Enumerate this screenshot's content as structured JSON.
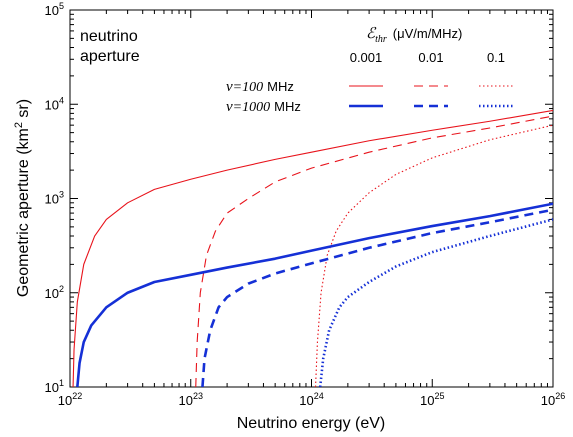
{
  "chart_data": {
    "type": "line",
    "xlabel": "Neutrino energy (eV)",
    "ylabel": "Geometric aperture (km² sr)",
    "x_scale": "log",
    "y_scale": "log",
    "xlim": [
      1e+22,
      1e+26
    ],
    "ylim": [
      10,
      100000
    ],
    "x_ticks": [
      {
        "base": "10",
        "exp": "22"
      },
      {
        "base": "10",
        "exp": "23"
      },
      {
        "base": "10",
        "exp": "24"
      },
      {
        "base": "10",
        "exp": "25"
      },
      {
        "base": "10",
        "exp": "26"
      }
    ],
    "y_ticks": [
      {
        "base": "10",
        "exp": "1"
      },
      {
        "base": "10",
        "exp": "2"
      },
      {
        "base": "10",
        "exp": "3"
      },
      {
        "base": "10",
        "exp": "4"
      },
      {
        "base": "10",
        "exp": "5"
      }
    ],
    "grid": false,
    "annotation": [
      "neutrino",
      "aperture"
    ],
    "legend": {
      "placement": "top-right",
      "threshold_title_symbol": "ℰ",
      "threshold_title_sub": "thr",
      "threshold_title_unit": "(μV/m/MHz)",
      "threshold_values": [
        "0.001",
        "0.01",
        "0.1"
      ],
      "frequency_labels": [
        {
          "symbol": "ν",
          "eq": "=100",
          "unit": "MHz"
        },
        {
          "symbol": "ν",
          "eq": "=1000",
          "unit": "MHz"
        }
      ]
    },
    "colors": {
      "100 MHz": "#e8131b",
      "1000 MHz": "#1530d6"
    },
    "series": [
      {
        "frequency": "100 MHz",
        "threshold": "0.001",
        "style": "solid",
        "points": [
          [
            1.06e+22,
            10
          ],
          [
            1.08e+22,
            25
          ],
          [
            1.15e+22,
            80
          ],
          [
            1.3e+22,
            200
          ],
          [
            1.6e+22,
            400
          ],
          [
            2e+22,
            600
          ],
          [
            3e+22,
            900
          ],
          [
            5e+22,
            1250
          ],
          [
            1e+23,
            1600
          ],
          [
            2e+23,
            2000
          ],
          [
            5e+23,
            2600
          ],
          [
            1e+24,
            3100
          ],
          [
            3e+24,
            4100
          ],
          [
            1e+25,
            5300
          ],
          [
            3e+25,
            6600
          ],
          [
            1e+26,
            8600
          ]
        ]
      },
      {
        "frequency": "100 MHz",
        "threshold": "0.01",
        "style": "dashed",
        "points": [
          [
            1.1e+23,
            10
          ],
          [
            1.13e+23,
            30
          ],
          [
            1.2e+23,
            100
          ],
          [
            1.35e+23,
            250
          ],
          [
            1.6e+23,
            450
          ],
          [
            2e+23,
            700
          ],
          [
            3e+23,
            1000
          ],
          [
            5e+23,
            1500
          ],
          [
            1e+24,
            2100
          ],
          [
            3e+24,
            3100
          ],
          [
            1e+25,
            4400
          ],
          [
            3e+25,
            5600
          ],
          [
            1e+26,
            7500
          ]
        ]
      },
      {
        "frequency": "100 MHz",
        "threshold": "0.1",
        "style": "dotted",
        "points": [
          [
            1.08e+24,
            10
          ],
          [
            1.12e+24,
            30
          ],
          [
            1.2e+24,
            100
          ],
          [
            1.35e+24,
            250
          ],
          [
            1.6e+24,
            450
          ],
          [
            2e+24,
            700
          ],
          [
            3e+24,
            1150
          ],
          [
            5e+24,
            1800
          ],
          [
            1e+25,
            2700
          ],
          [
            3e+25,
            4200
          ],
          [
            1e+26,
            6000
          ]
        ]
      },
      {
        "frequency": "1000 MHz",
        "threshold": "0.001",
        "style": "solid",
        "points": [
          [
            1.15e+22,
            10
          ],
          [
            1.2e+22,
            18
          ],
          [
            1.3e+22,
            30
          ],
          [
            1.5e+22,
            45
          ],
          [
            2e+22,
            70
          ],
          [
            3e+22,
            100
          ],
          [
            5e+22,
            130
          ],
          [
            1e+23,
            155
          ],
          [
            2e+23,
            185
          ],
          [
            5e+23,
            230
          ],
          [
            1e+24,
            280
          ],
          [
            3e+24,
            380
          ],
          [
            1e+25,
            510
          ],
          [
            3e+25,
            650
          ],
          [
            1e+26,
            880
          ]
        ]
      },
      {
        "frequency": "1000 MHz",
        "threshold": "0.01",
        "style": "dashed",
        "points": [
          [
            1.25e+23,
            10
          ],
          [
            1.3e+23,
            20
          ],
          [
            1.45e+23,
            40
          ],
          [
            1.7e+23,
            70
          ],
          [
            2e+23,
            90
          ],
          [
            3e+23,
            125
          ],
          [
            5e+23,
            160
          ],
          [
            1e+24,
            205
          ],
          [
            3e+24,
            300
          ],
          [
            1e+25,
            430
          ],
          [
            3e+25,
            560
          ],
          [
            1e+26,
            760
          ]
        ]
      },
      {
        "frequency": "1000 MHz",
        "threshold": "0.1",
        "style": "dotted",
        "points": [
          [
            1.18e+24,
            10
          ],
          [
            1.25e+24,
            20
          ],
          [
            1.4e+24,
            40
          ],
          [
            1.7e+24,
            70
          ],
          [
            2e+24,
            90
          ],
          [
            3e+24,
            130
          ],
          [
            5e+24,
            190
          ],
          [
            1e+25,
            270
          ],
          [
            3e+25,
            400
          ],
          [
            1e+26,
            600
          ]
        ]
      }
    ]
  }
}
